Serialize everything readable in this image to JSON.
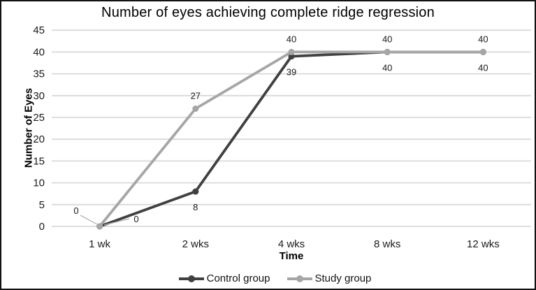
{
  "chart_data": {
    "type": "line",
    "title": "Number of eyes achieving complete ridge regression",
    "xlabel": "Time",
    "ylabel": "Number of Eyes",
    "categories": [
      "1 wk",
      "2 wks",
      "4 wks",
      "8 wks",
      "12 wks"
    ],
    "series": [
      {
        "name": "Control group",
        "color": "#404040",
        "values": [
          0,
          8,
          39,
          40,
          40
        ],
        "label_side": "below"
      },
      {
        "name": "Study group",
        "color": "#a6a6a6",
        "values": [
          0,
          27,
          40,
          40,
          40
        ],
        "label_side": "above"
      }
    ],
    "ylim": [
      0,
      45
    ],
    "ytick_step": 5,
    "grid": true,
    "gridline_color": "#d9d9d9",
    "legend_position": "bottom"
  }
}
